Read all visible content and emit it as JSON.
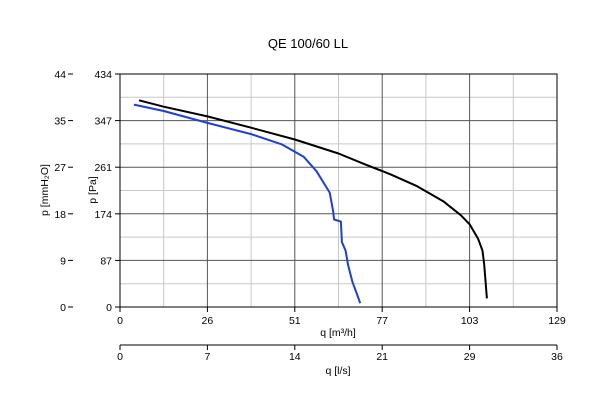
{
  "chart_data": {
    "type": "line",
    "title": "QE 100/60 LL",
    "x_primary": {
      "label": "q [m³/h]",
      "range": [
        0,
        129
      ],
      "ticks": [
        "0",
        "26",
        "51",
        "77",
        "103",
        "129"
      ]
    },
    "x_secondary": {
      "label": "q [l/s]",
      "range": [
        0,
        36
      ],
      "ticks": [
        "0",
        "7",
        "14",
        "21",
        "29",
        "36"
      ]
    },
    "y_primary": {
      "label": "p [Pa]",
      "range": [
        0,
        434
      ],
      "ticks": [
        "0",
        "87",
        "174",
        "261",
        "347",
        "434"
      ]
    },
    "y_secondary": {
      "label": "p [mmH₂O]",
      "range": [
        0,
        44
      ],
      "ticks": [
        "0",
        "9",
        "18",
        "27",
        "35",
        "44"
      ]
    },
    "grid": true,
    "series": [
      {
        "color": "#000000",
        "points": [
          [
            5.6,
            385
          ],
          [
            12.9,
            373
          ],
          [
            25.8,
            355
          ],
          [
            38.7,
            334
          ],
          [
            51.6,
            312
          ],
          [
            64.5,
            286
          ],
          [
            72.2,
            266
          ],
          [
            79.9,
            247
          ],
          [
            87.7,
            225
          ],
          [
            95.4,
            197
          ],
          [
            100.6,
            171
          ],
          [
            103.2,
            154
          ],
          [
            105.7,
            127
          ],
          [
            107.0,
            105
          ],
          [
            107.5,
            79
          ],
          [
            108.3,
            16
          ]
        ]
      },
      {
        "color": "#1f3fd6",
        "points": [
          [
            4.1,
            377
          ],
          [
            12.9,
            365
          ],
          [
            25.8,
            343
          ],
          [
            38.7,
            322
          ],
          [
            47.7,
            303
          ],
          [
            54.2,
            280
          ],
          [
            58.0,
            253
          ],
          [
            61.9,
            213
          ],
          [
            62.9,
            179
          ],
          [
            63.2,
            163
          ],
          [
            65.2,
            159
          ],
          [
            65.5,
            121
          ],
          [
            66.6,
            105
          ],
          [
            67.3,
            79
          ],
          [
            68.6,
            47
          ],
          [
            69.9,
            25
          ],
          [
            70.9,
            7
          ]
        ]
      }
    ]
  }
}
